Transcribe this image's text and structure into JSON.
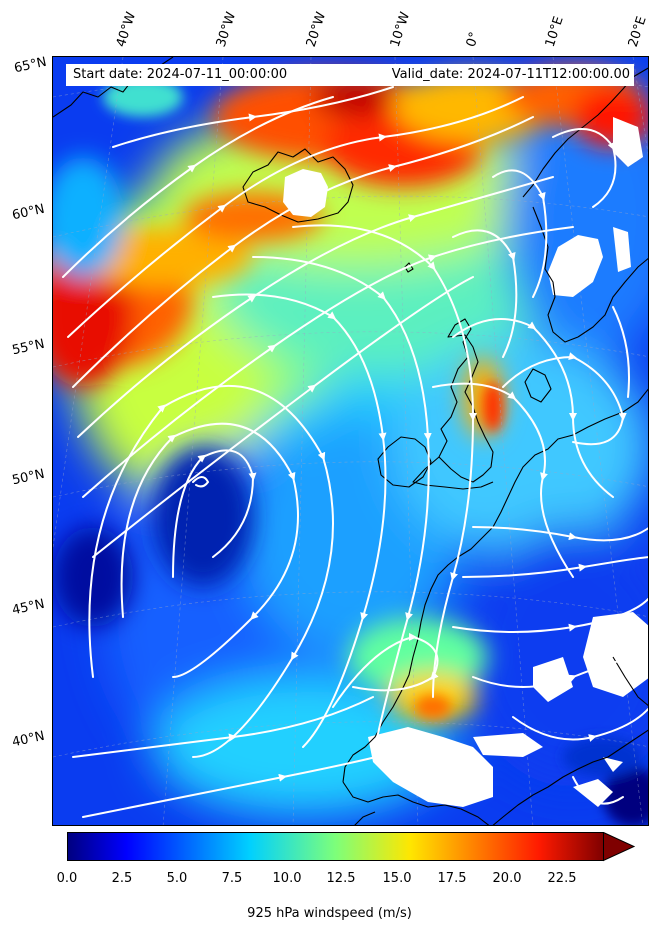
{
  "header": {
    "start_date": "Start date: 2024-07-11_00:00:00",
    "valid_date": "Valid_date: 2024-07-11T12:00:00.00"
  },
  "longitude_labels": [
    "40°W",
    "30°W",
    "20°W",
    "10°W",
    "0°",
    "10°E",
    "20°E"
  ],
  "latitude_labels": [
    "65°N",
    "60°N",
    "55°N",
    "50°N",
    "45°N",
    "40°N"
  ],
  "colorbar": {
    "label": "925 hPa windspeed (m/s)",
    "ticks": [
      "0.0",
      "2.5",
      "5.0",
      "7.5",
      "10.0",
      "12.5",
      "15.0",
      "17.5",
      "20.0",
      "22.5"
    ],
    "min": 0,
    "max": 25,
    "extend": "max",
    "colormap": "jet"
  },
  "colors": {
    "calm": "#00007f",
    "low": "#0050ff",
    "moderate": "#00e0ff",
    "mid": "#7dff7a",
    "high": "#ffdd00",
    "very_high": "#ff3000",
    "extreme": "#7f0000",
    "coastline": "#000000",
    "streamlines": "#ffffff",
    "masked_terrain": "#ffffff"
  }
}
